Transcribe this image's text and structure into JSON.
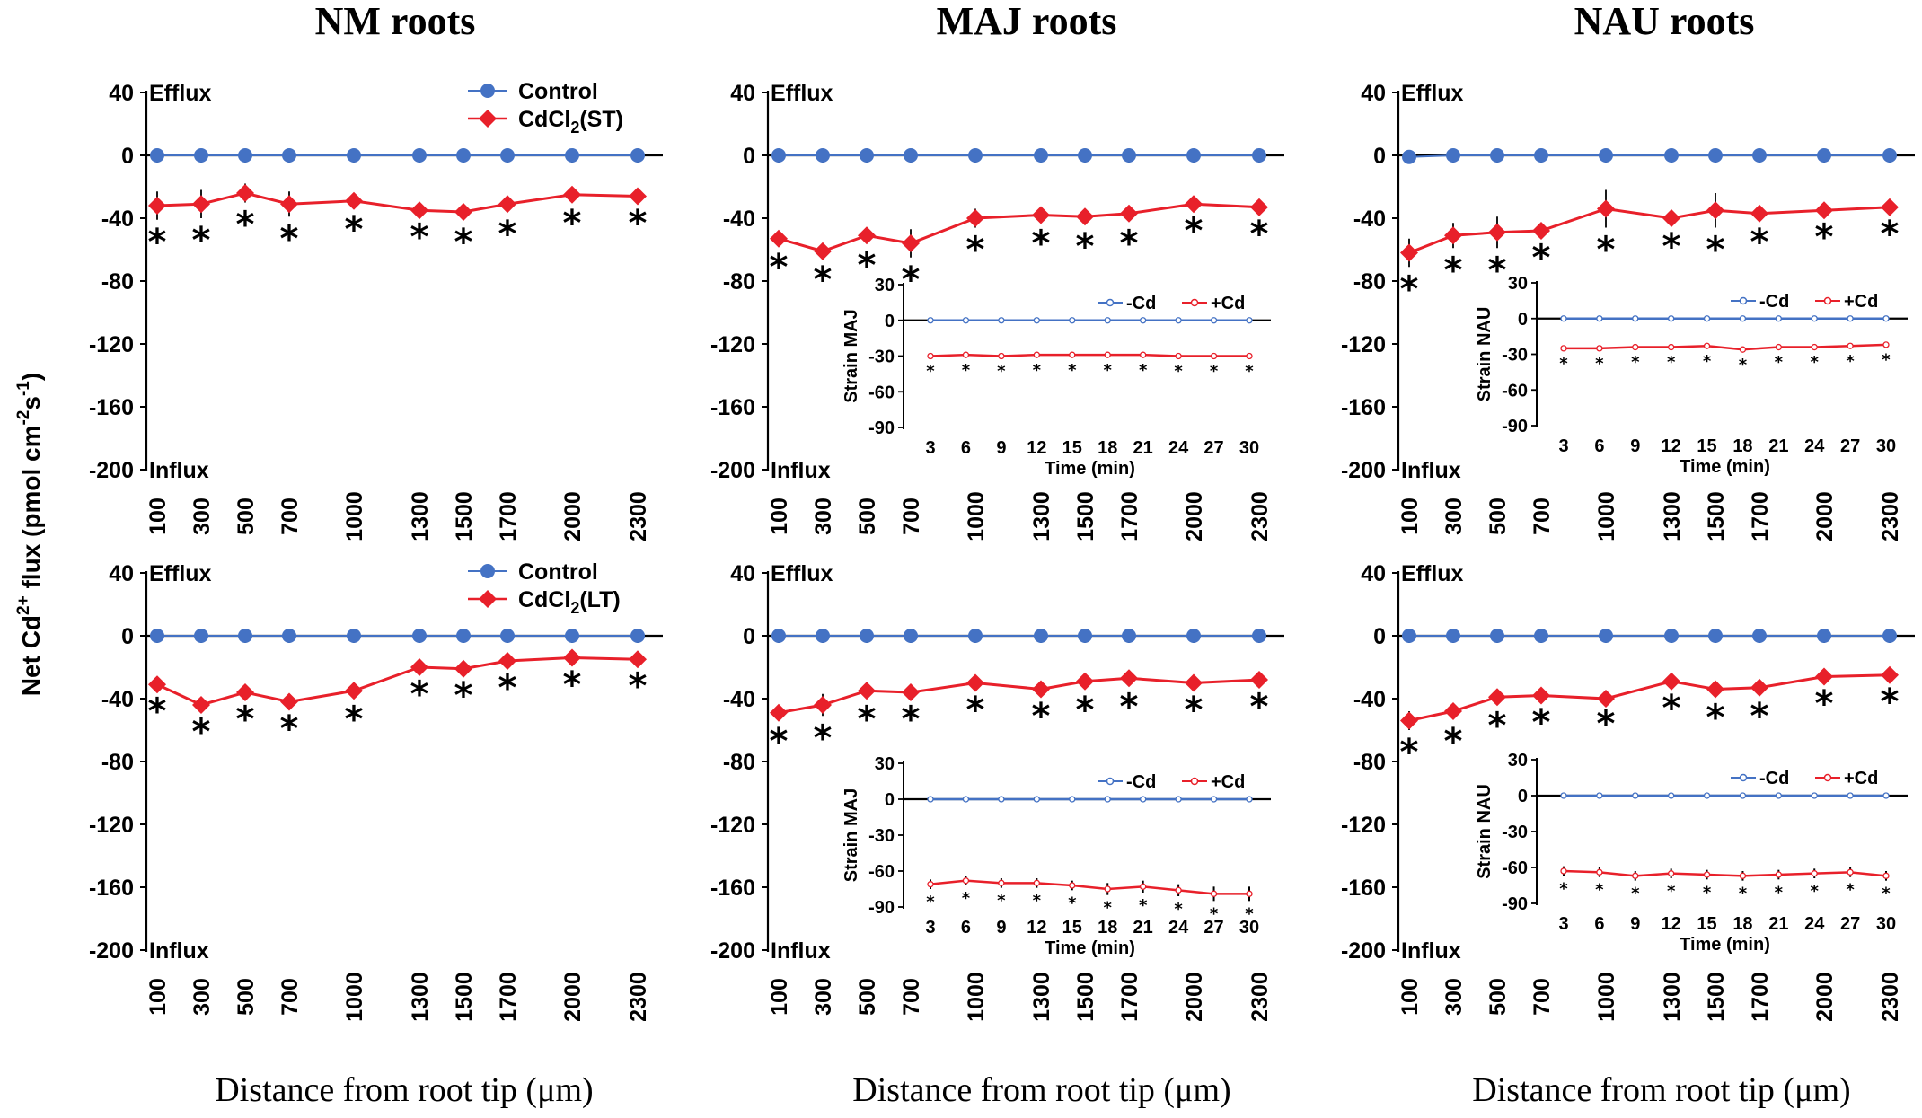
{
  "figure": {
    "ylabel": "Net Cd2+ flux (pmol cm-2 s-1)",
    "ylabel_parts": {
      "base": "Net Cd",
      "sup1": "2+",
      "mid": " flux (pmol cm",
      "sup2": "-2",
      "mid2": "s",
      "sup3": "-1",
      "end": ")"
    },
    "column_titles": [
      "NM roots",
      "MAJ roots",
      "NAU roots"
    ],
    "xlabel": "Distance from root tip (μm)"
  },
  "colors": {
    "control": "#4472C4",
    "cd": "#E8202A",
    "axis": "#000000"
  },
  "chart_data": [
    {
      "id": "nm-st",
      "type": "line",
      "title": "NM roots",
      "xlabel": "Distance from root tip (μm)",
      "categories": [
        "100",
        "300",
        "500",
        "700",
        "1000",
        "1300",
        "1500",
        "1700",
        "2000",
        "2300"
      ],
      "x": [
        100,
        300,
        500,
        700,
        1000,
        1300,
        1500,
        1700,
        2000,
        2300
      ],
      "ylim": [
        -200,
        40
      ],
      "yticks": [
        "40",
        "0",
        "-40",
        "-80",
        "-120",
        "-160",
        "-200"
      ],
      "ytick_values": [
        40,
        0,
        -40,
        -80,
        -120,
        -160,
        -200
      ],
      "efflux_label": "Efflux",
      "influx_label": "Influx",
      "legend": [
        "Control",
        "CdCl2(ST)"
      ],
      "legend_sub": {
        "base": "CdCl",
        "sub": "2",
        "rest": "(ST)"
      },
      "series": [
        {
          "name": "Control",
          "values": [
            0,
            0,
            0,
            0,
            0,
            0,
            0,
            0,
            0,
            0
          ],
          "err": [
            0,
            0,
            0,
            0,
            0,
            0,
            0,
            0,
            0,
            0
          ]
        },
        {
          "name": "CdCl2(ST)",
          "values": [
            -32,
            -31,
            -24,
            -31,
            -29,
            -35,
            -36,
            -31,
            -25,
            -26
          ],
          "err": [
            9,
            9,
            6,
            8,
            4,
            3,
            5,
            5,
            4,
            3
          ]
        }
      ],
      "stars": [
        "*",
        "*",
        "*",
        "*",
        "*",
        "*",
        "*",
        "*",
        "*",
        "*"
      ]
    },
    {
      "id": "maj-st",
      "type": "line",
      "title": "MAJ roots",
      "categories": [
        "100",
        "300",
        "500",
        "700",
        "1000",
        "1300",
        "1500",
        "1700",
        "2000",
        "2300"
      ],
      "x": [
        100,
        300,
        500,
        700,
        1000,
        1300,
        1500,
        1700,
        2000,
        2300
      ],
      "ylim": [
        -200,
        40
      ],
      "yticks": [
        "40",
        "0",
        "-40",
        "-80",
        "-120",
        "-160",
        "-200"
      ],
      "ytick_values": [
        40,
        0,
        -40,
        -80,
        -120,
        -160,
        -200
      ],
      "efflux_label": "Efflux",
      "influx_label": "Influx",
      "series": [
        {
          "name": "Control",
          "values": [
            0,
            0,
            0,
            0,
            0,
            0,
            0,
            0,
            0,
            0
          ],
          "err": [
            0,
            0,
            0,
            0,
            0,
            0,
            0,
            0,
            0,
            0
          ]
        },
        {
          "name": "CdCl2(ST)",
          "values": [
            -53,
            -61,
            -51,
            -56,
            -40,
            -38,
            -39,
            -37,
            -31,
            -33
          ],
          "err": [
            4,
            4,
            5,
            9,
            6,
            4,
            5,
            5,
            3,
            3
          ]
        }
      ],
      "stars": [
        "*",
        "*",
        "*",
        "*",
        "*",
        "*",
        "*",
        "*",
        "*",
        "*"
      ],
      "inset": {
        "ylabel": "Strain MAJ",
        "xlabel": "Time (min)",
        "categories": [
          "3",
          "6",
          "9",
          "12",
          "15",
          "18",
          "21",
          "24",
          "27",
          "30"
        ],
        "yticks": [
          "30",
          "0",
          "-30",
          "-60",
          "-90"
        ],
        "ytick_values": [
          30,
          0,
          -30,
          -60,
          -90
        ],
        "ylim": [
          -90,
          30
        ],
        "legend": [
          "-Cd",
          "+Cd"
        ],
        "series": [
          {
            "name": "-Cd",
            "values": [
              0,
              0,
              0,
              0,
              0,
              0,
              0,
              0,
              0,
              0
            ]
          },
          {
            "name": "+Cd",
            "values": [
              -30,
              -29,
              -30,
              -29,
              -29,
              -29,
              -29,
              -30,
              -30,
              -30
            ],
            "err": [
              2,
              2,
              2,
              2,
              2,
              2,
              2,
              2,
              2,
              2
            ]
          }
        ],
        "stars": [
          "*",
          "*",
          "*",
          "*",
          "*",
          "*",
          "*",
          "*",
          "*",
          "*"
        ]
      }
    },
    {
      "id": "nau-st",
      "type": "line",
      "title": "NAU roots",
      "categories": [
        "100",
        "300",
        "500",
        "700",
        "1000",
        "1300",
        "1500",
        "1700",
        "2000",
        "2300"
      ],
      "x": [
        100,
        300,
        500,
        700,
        1000,
        1300,
        1500,
        1700,
        2000,
        2300
      ],
      "ylim": [
        -200,
        40
      ],
      "yticks": [
        "40",
        "0",
        "-40",
        "-80",
        "-120",
        "-160",
        "-200"
      ],
      "ytick_values": [
        40,
        0,
        -40,
        -80,
        -120,
        -160,
        -200
      ],
      "efflux_label": "Efflux",
      "influx_label": "Influx",
      "series": [
        {
          "name": "Control",
          "values": [
            -1,
            0,
            0,
            0,
            0,
            0,
            0,
            0,
            0,
            0
          ],
          "err": [
            0,
            0,
            0,
            0,
            0,
            0,
            0,
            0,
            0,
            0
          ]
        },
        {
          "name": "CdCl2(ST)",
          "values": [
            -62,
            -51,
            -49,
            -48,
            -34,
            -40,
            -35,
            -37,
            -35,
            -33
          ],
          "err": [
            9,
            8,
            10,
            3,
            12,
            4,
            11,
            4,
            3,
            3
          ]
        }
      ],
      "stars": [
        "*",
        "*",
        "*",
        "*",
        "*",
        "*",
        "*",
        "*",
        "*",
        "*"
      ],
      "inset": {
        "ylabel": "Strain NAU",
        "xlabel": "Time (min)",
        "categories": [
          "3",
          "6",
          "9",
          "12",
          "15",
          "18",
          "21",
          "24",
          "27",
          "30"
        ],
        "yticks": [
          "30",
          "0",
          "-30",
          "-60",
          "-90"
        ],
        "ytick_values": [
          30,
          0,
          -30,
          -60,
          -90
        ],
        "ylim": [
          -90,
          30
        ],
        "legend": [
          "-Cd",
          "+Cd"
        ],
        "series": [
          {
            "name": "-Cd",
            "values": [
              0,
              0,
              0,
              0,
              0,
              0,
              0,
              0,
              0,
              0
            ]
          },
          {
            "name": "+Cd",
            "values": [
              -25,
              -25,
              -24,
              -24,
              -23,
              -26,
              -24,
              -24,
              -23,
              -22
            ],
            "err": [
              2,
              2,
              2,
              2,
              2,
              2,
              2,
              2,
              2,
              2
            ]
          }
        ],
        "stars": [
          "*",
          "*",
          "*",
          "*",
          "*",
          "*",
          "*",
          "*",
          "*",
          "*"
        ]
      }
    },
    {
      "id": "nm-lt",
      "type": "line",
      "title": "NM roots",
      "categories": [
        "100",
        "300",
        "500",
        "700",
        "1000",
        "1300",
        "1500",
        "1700",
        "2000",
        "2300"
      ],
      "x": [
        100,
        300,
        500,
        700,
        1000,
        1300,
        1500,
        1700,
        2000,
        2300
      ],
      "ylim": [
        -200,
        40
      ],
      "yticks": [
        "40",
        "0",
        "-40",
        "-80",
        "-120",
        "-160",
        "-200"
      ],
      "ytick_values": [
        40,
        0,
        -40,
        -80,
        -120,
        -160,
        -200
      ],
      "efflux_label": "Efflux",
      "influx_label": "Influx",
      "legend": [
        "Control",
        "CdCl2(LT)"
      ],
      "legend_sub": {
        "base": "CdCl",
        "sub": "2",
        "rest": "(LT)"
      },
      "series": [
        {
          "name": "Control",
          "values": [
            0,
            0,
            0,
            0,
            0,
            0,
            0,
            0,
            0,
            0
          ],
          "err": [
            0,
            0,
            0,
            0,
            0,
            0,
            0,
            0,
            0,
            0
          ]
        },
        {
          "name": "CdCl2(LT)",
          "values": [
            -31,
            -44,
            -36,
            -42,
            -35,
            -20,
            -21,
            -16,
            -14,
            -15
          ],
          "err": [
            3,
            3,
            3,
            3,
            4,
            3,
            3,
            3,
            3,
            3
          ]
        }
      ],
      "stars": [
        "*",
        "*",
        "*",
        "*",
        "*",
        "*",
        "*",
        "*",
        "*",
        "*"
      ]
    },
    {
      "id": "maj-lt",
      "type": "line",
      "title": "MAJ roots",
      "categories": [
        "100",
        "300",
        "500",
        "700",
        "1000",
        "1300",
        "1500",
        "1700",
        "2000",
        "2300"
      ],
      "x": [
        100,
        300,
        500,
        700,
        1000,
        1300,
        1500,
        1700,
        2000,
        2300
      ],
      "ylim": [
        -200,
        40
      ],
      "yticks": [
        "40",
        "0",
        "-40",
        "-80",
        "-120",
        "-160",
        "-200"
      ],
      "ytick_values": [
        40,
        0,
        -40,
        -80,
        -120,
        -160,
        -200
      ],
      "efflux_label": "Efflux",
      "influx_label": "Influx",
      "series": [
        {
          "name": "Control",
          "values": [
            0,
            0,
            0,
            0,
            0,
            0,
            0,
            0,
            0,
            0
          ],
          "err": [
            0,
            0,
            0,
            0,
            0,
            0,
            0,
            0,
            0,
            0
          ]
        },
        {
          "name": "CdCl2(LT)",
          "values": [
            -49,
            -44,
            -35,
            -36,
            -30,
            -34,
            -29,
            -27,
            -30,
            -28
          ],
          "err": [
            4,
            7,
            4,
            3,
            3,
            3,
            4,
            4,
            3,
            3
          ]
        }
      ],
      "stars": [
        "*",
        "*",
        "*",
        "*",
        "*",
        "*",
        "*",
        "*",
        "*",
        "*"
      ],
      "inset": {
        "ylabel": "Strain MAJ",
        "xlabel": "Time (min)",
        "categories": [
          "3",
          "6",
          "9",
          "12",
          "15",
          "18",
          "21",
          "24",
          "27",
          "30"
        ],
        "yticks": [
          "30",
          "0",
          "-30",
          "-60",
          "-90"
        ],
        "ytick_values": [
          30,
          0,
          -30,
          -60,
          -90
        ],
        "ylim": [
          -90,
          30
        ],
        "legend": [
          "-Cd",
          "+Cd"
        ],
        "series": [
          {
            "name": "-Cd",
            "values": [
              0,
              0,
              0,
              0,
              0,
              0,
              0,
              0,
              0,
              0
            ]
          },
          {
            "name": "+Cd",
            "values": [
              -71,
              -68,
              -70,
              -70,
              -72,
              -75,
              -73,
              -76,
              -79,
              -79
            ],
            "err": [
              4,
              4,
              4,
              4,
              4,
              5,
              5,
              5,
              6,
              6
            ]
          }
        ],
        "stars": [
          "*",
          "*",
          "*",
          "*",
          "*",
          "*",
          "*",
          "*",
          "*",
          "*"
        ]
      }
    },
    {
      "id": "nau-lt",
      "type": "line",
      "title": "NAU roots",
      "categories": [
        "100",
        "300",
        "500",
        "700",
        "1000",
        "1300",
        "1500",
        "1700",
        "2000",
        "2300"
      ],
      "x": [
        100,
        300,
        500,
        700,
        1000,
        1300,
        1500,
        1700,
        2000,
        2300
      ],
      "ylim": [
        -200,
        40
      ],
      "yticks": [
        "40",
        "0",
        "-40",
        "-80",
        "-120",
        "-160",
        "-200"
      ],
      "ytick_values": [
        40,
        0,
        -40,
        -80,
        -120,
        -160,
        -200
      ],
      "efflux_label": "Efflux",
      "influx_label": "Influx",
      "series": [
        {
          "name": "Control",
          "values": [
            0,
            0,
            0,
            0,
            0,
            0,
            0,
            0,
            0,
            0
          ],
          "err": [
            0,
            0,
            0,
            0,
            0,
            0,
            0,
            0,
            0,
            0
          ]
        },
        {
          "name": "CdCl2(LT)",
          "values": [
            -54,
            -48,
            -39,
            -38,
            -40,
            -29,
            -34,
            -33,
            -26,
            -25
          ],
          "err": [
            6,
            5,
            4,
            3,
            2,
            3,
            4,
            4,
            3,
            3
          ]
        }
      ],
      "stars": [
        "*",
        "*",
        "*",
        "*",
        "*",
        "*",
        "*",
        "*",
        "*",
        "*"
      ],
      "inset": {
        "ylabel": "Strain NAU",
        "xlabel": "Time (min)",
        "categories": [
          "3",
          "6",
          "9",
          "12",
          "15",
          "18",
          "21",
          "24",
          "27",
          "30"
        ],
        "yticks": [
          "30",
          "0",
          "-30",
          "-60",
          "-90"
        ],
        "ytick_values": [
          30,
          0,
          -30,
          -60,
          -90
        ],
        "ylim": [
          -90,
          30
        ],
        "legend": [
          "-Cd",
          "+Cd"
        ],
        "series": [
          {
            "name": "-Cd",
            "values": [
              0,
              0,
              0,
              0,
              0,
              0,
              0,
              0,
              0,
              0
            ]
          },
          {
            "name": "+Cd",
            "values": [
              -63,
              -64,
              -67,
              -65,
              -66,
              -67,
              -66,
              -65,
              -64,
              -67
            ],
            "err": [
              4,
              4,
              4,
              4,
              4,
              4,
              4,
              4,
              4,
              4
            ]
          }
        ],
        "stars": [
          "*",
          "*",
          "*",
          "*",
          "*",
          "*",
          "*",
          "*",
          "*",
          "*"
        ]
      }
    }
  ]
}
